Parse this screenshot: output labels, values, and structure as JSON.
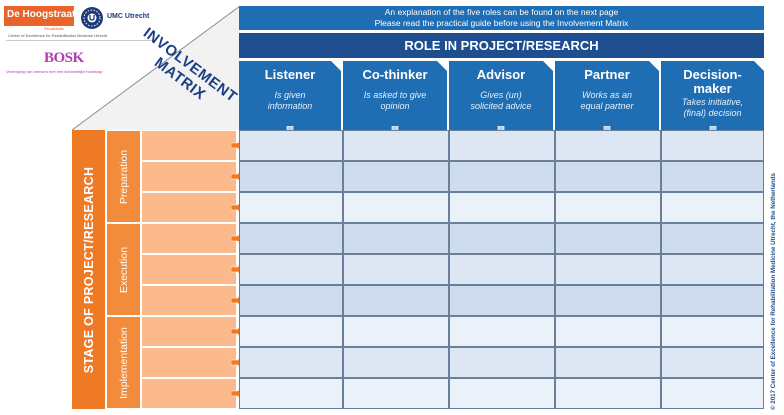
{
  "logos": {
    "hoogstraat": {
      "name": "De Hoogstraat",
      "sub": "Revalidatie"
    },
    "umc": {
      "name": "UMC Utrecht"
    },
    "center_of_excellence": "Center of Excellence for Rehabilitation Medicine Utrecht",
    "bosk": {
      "name": "BOSK",
      "sub": "Vereniging van mensen met een lichamelijke handicap"
    }
  },
  "title": {
    "line1": "INVOLVEMENT",
    "line2": "MATRIX"
  },
  "banner": {
    "line1": "An explanation of the five roles can be found on the next page",
    "line2": "Please read the practical guide before using the Involvement Matrix"
  },
  "role_header": "ROLE IN PROJECT/RESEARCH",
  "roles": [
    {
      "name": "Listener",
      "desc1": "Is given",
      "desc2": "information"
    },
    {
      "name": "Co-thinker",
      "desc1": "Is asked to give",
      "desc2": "opinion"
    },
    {
      "name": "Advisor",
      "desc1": "Gives (un)",
      "desc2": "solicited advice"
    },
    {
      "name": "Partner",
      "desc1": "Works as an",
      "desc2": "equal partner"
    },
    {
      "name": "Decision-",
      "name2": "maker",
      "desc1": "Takes initiative,",
      "desc2": "(final) decision"
    }
  ],
  "stage_header": "STAGE OF PROJECT/RESEARCH",
  "phases": [
    {
      "label": "Preparation",
      "rows": 3
    },
    {
      "label": "Execution",
      "rows": 3
    },
    {
      "label": "Implementation",
      "rows": 3
    }
  ],
  "copyright": "© 2017 Center of Excellence for Rehabilitation Medicine Utrecht, the Netherlands",
  "colors": {
    "dark_blue": "#1e4e8f",
    "mid_blue": "#1f6db3",
    "orange": "#ee7a26",
    "light_orange": "#fbb98c",
    "title_blue": "#1b3f84"
  }
}
